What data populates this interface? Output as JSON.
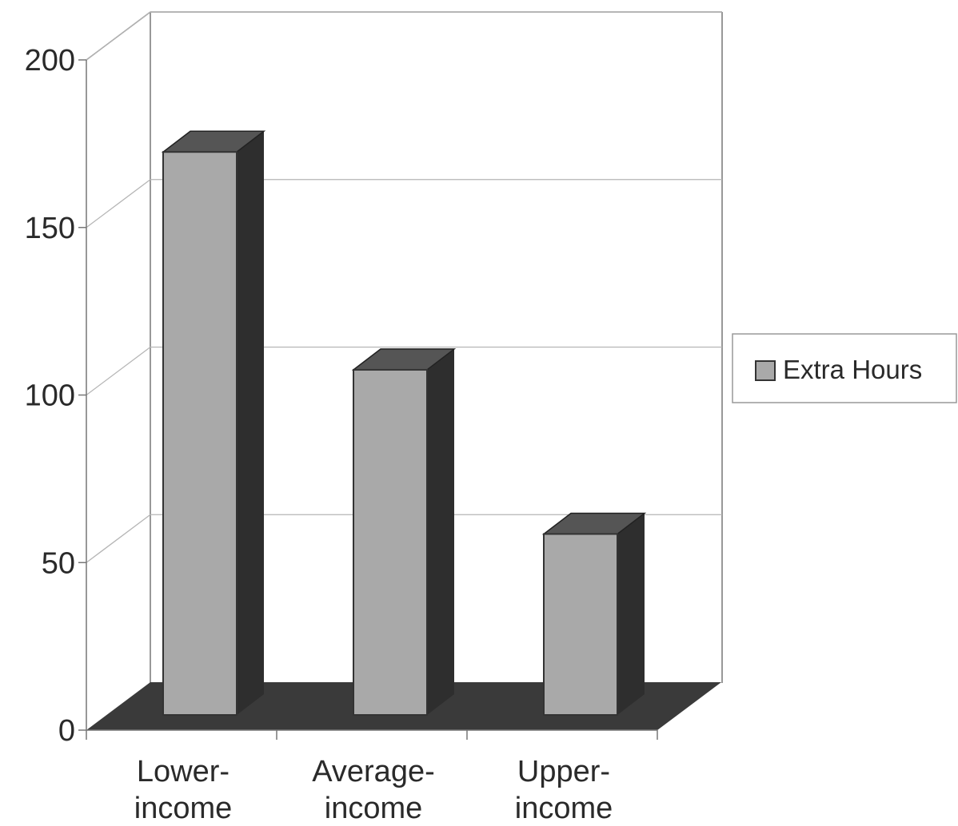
{
  "chart_data": {
    "type": "bar",
    "categories": [
      [
        "Lower-",
        "income"
      ],
      [
        "Average-",
        "income"
      ],
      [
        "Upper-",
        "income"
      ]
    ],
    "series": [
      {
        "name": "Extra Hours",
        "values": [
          168,
          103,
          54
        ]
      }
    ],
    "ylim": [
      0,
      200
    ],
    "yticks": [
      0,
      50,
      100,
      150,
      200
    ],
    "title": "",
    "xlabel": "",
    "ylabel": "",
    "grid": true,
    "legend_position": "right",
    "colors": {
      "bar_front": "#a9a9a9",
      "bar_side": "#2e2e2e",
      "bar_top": "#555555",
      "floor": "#3a3a3a",
      "gridline": "#b5b5b5",
      "axis": "#777777"
    }
  }
}
